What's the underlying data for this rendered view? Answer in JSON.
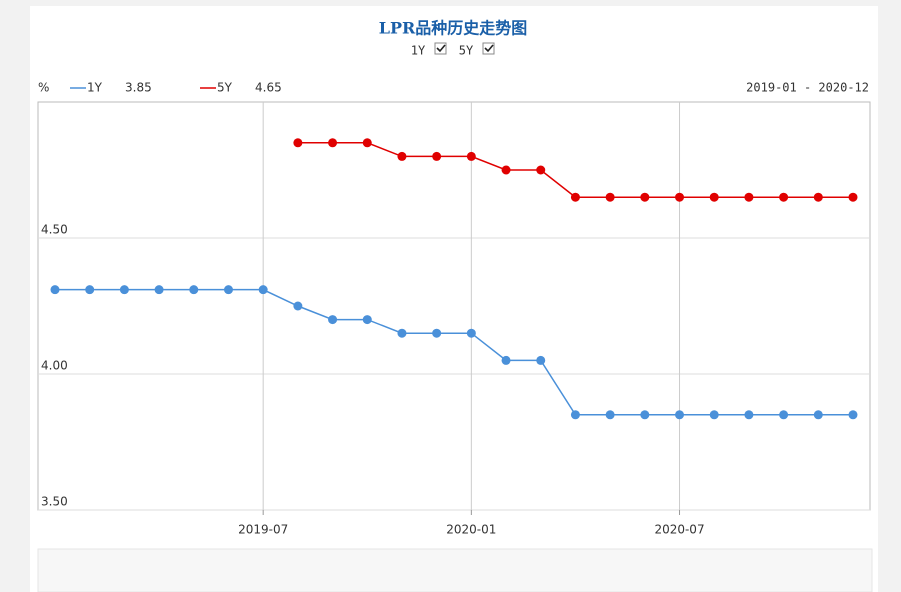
{
  "chart_data": {
    "type": "line",
    "title": "LPR品种历史走势图",
    "y_unit": "%",
    "date_range": "2019-01 - 2020-12",
    "categories": [
      null,
      null,
      null,
      null,
      null,
      null,
      "2019-07",
      null,
      null,
      null,
      null,
      null,
      "2020-01",
      null,
      null,
      null,
      null,
      null,
      "2020-07",
      null,
      null,
      null,
      null,
      null
    ],
    "series": [
      {
        "name": "1Y",
        "color": "#4a90d9",
        "last_value": 3.85,
        "values": [
          4.31,
          4.31,
          4.31,
          4.31,
          4.31,
          4.31,
          4.31,
          4.25,
          4.2,
          4.2,
          4.15,
          4.15,
          4.15,
          4.05,
          4.05,
          3.85,
          3.85,
          3.85,
          3.85,
          3.85,
          3.85,
          3.85,
          3.85,
          3.85
        ]
      },
      {
        "name": "5Y",
        "color": "#e00000",
        "last_value": 4.65,
        "values": [
          null,
          null,
          null,
          null,
          null,
          null,
          null,
          4.85,
          4.85,
          4.85,
          4.8,
          4.8,
          4.8,
          4.75,
          4.75,
          4.65,
          4.65,
          4.65,
          4.65,
          4.65,
          4.65,
          4.65,
          4.65,
          4.65
        ]
      }
    ],
    "ylim": [
      3.5,
      5.0
    ],
    "yticks": [
      {
        "value": 3.5,
        "label": "3.50"
      },
      {
        "value": 4.0,
        "label": "4.00"
      },
      {
        "value": 4.5,
        "label": "4.50"
      }
    ],
    "grid": true
  }
}
